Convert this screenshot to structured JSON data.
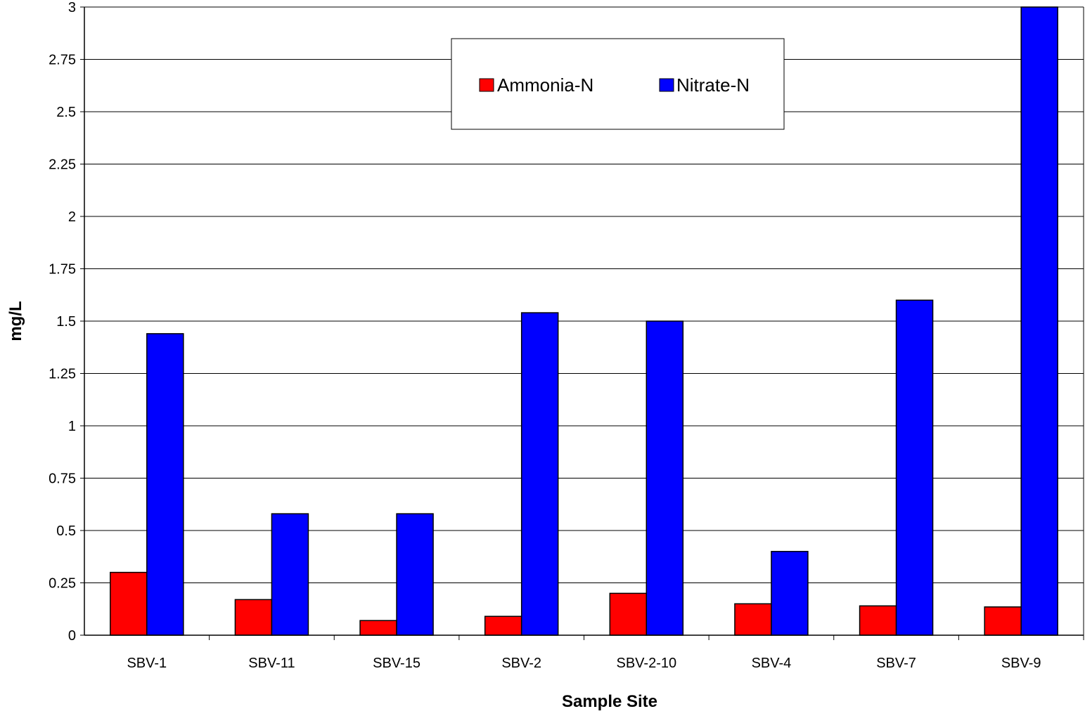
{
  "chart_data": {
    "type": "bar",
    "title": "",
    "xlabel": "Sample Site",
    "ylabel": "mg/L",
    "categories": [
      "SBV-1",
      "SBV-11",
      "SBV-15",
      "SBV-2",
      "SBV-2-10",
      "SBV-4",
      "SBV-7",
      "SBV-9"
    ],
    "series": [
      {
        "name": "Ammonia-N",
        "color": "#ff0000",
        "values": [
          0.3,
          0.17,
          0.07,
          0.09,
          0.2,
          0.15,
          0.14,
          0.135
        ]
      },
      {
        "name": "Nitrate-N",
        "color": "#0000ff",
        "values": [
          1.44,
          0.58,
          0.58,
          1.54,
          1.5,
          0.4,
          1.6,
          3.02
        ]
      }
    ],
    "ylim": [
      0,
      3
    ],
    "yticks": [
      "0",
      "0.25",
      "0.5",
      "0.75",
      "1",
      "1.25",
      "1.5",
      "1.75",
      "2",
      "2.25",
      "2.5",
      "2.75",
      "3"
    ],
    "grid": true,
    "legend_position": "top-center"
  }
}
